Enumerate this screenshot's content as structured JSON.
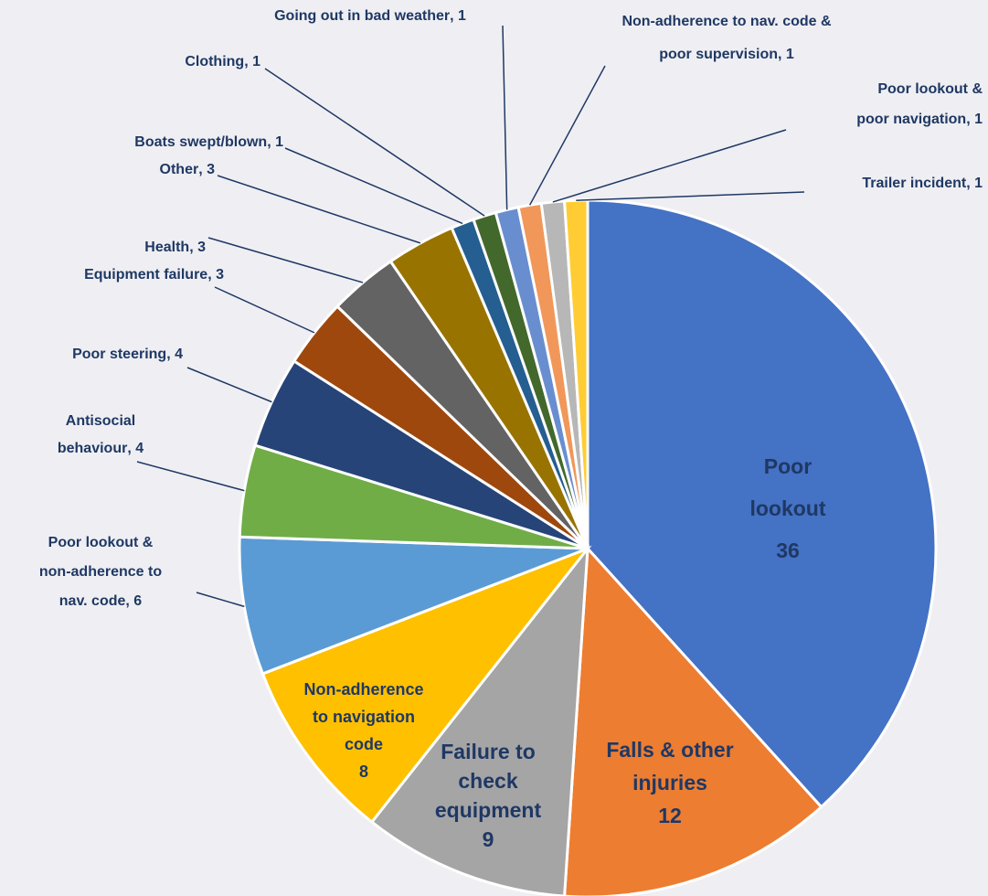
{
  "chart_data": {
    "type": "pie",
    "categories": [
      "Poor lookout",
      "Falls & other injuries",
      "Failure to check equipment",
      "Non-adherence to navigation code",
      "Poor lookout & non-adherence to nav. code",
      "Antisocial behaviour",
      "Poor steering",
      "Equipment failure",
      "Health",
      "Other",
      "Boats swept/blown off",
      "Clothing",
      "Going out in bad weather",
      "Non-adherence to nav. code & poor supervision",
      "Poor lookout & poor navigation",
      "Trailer incident"
    ],
    "values": [
      36,
      12,
      9,
      8,
      6,
      4,
      4,
      3,
      3,
      3,
      1,
      1,
      1,
      1,
      1,
      1
    ],
    "colors": [
      "#4472c4",
      "#ed7d31",
      "#a5a5a5",
      "#ffc000",
      "#5b9bd5",
      "#70ad47",
      "#264478",
      "#9e480e",
      "#636363",
      "#997300",
      "#255e91",
      "#43682b",
      "#698ed0",
      "#f1975a",
      "#b7b7b7",
      "#ffcd33"
    ],
    "label_separator": ", "
  }
}
